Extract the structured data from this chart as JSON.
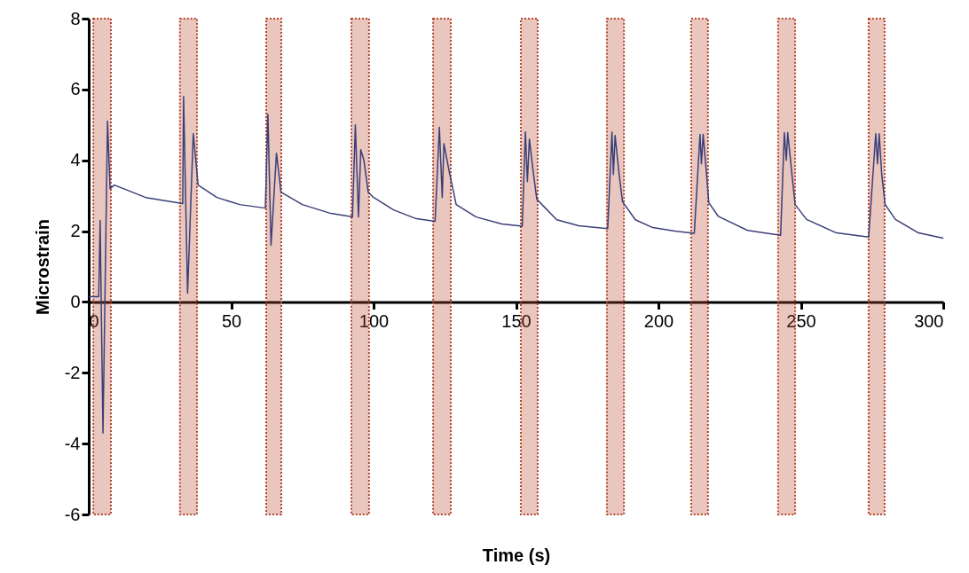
{
  "chart_data": {
    "type": "line",
    "xlabel": "Time (s)",
    "ylabel": "Microstrain",
    "xlim": [
      0,
      300
    ],
    "xticks": [
      0,
      50,
      100,
      150,
      200,
      250,
      300
    ],
    "ylim": [
      -6,
      8
    ],
    "yticks": [
      -6,
      -4,
      -2,
      0,
      2,
      4,
      6,
      8
    ],
    "grid": false,
    "marker": "none",
    "line_style": "solid",
    "series": [
      {
        "color": "#3b3f78",
        "x": [
          0,
          3.5,
          4,
          5,
          6.6,
          7.5,
          9,
          20,
          33,
          33.3,
          34.7,
          36.7,
          38.4,
          45,
          53,
          62,
          62.9,
          64,
          65.9,
          67.5,
          75,
          85,
          92.6,
          93.6,
          94.7,
          95.5,
          96.6,
          98.1,
          99.7,
          107,
          115,
          121.6,
          123.1,
          124.1,
          124.7,
          126.5,
          129,
          136,
          145,
          152.2,
          153.3,
          154,
          154.7,
          156,
          157.3,
          164.3,
          172,
          182.2,
          183.7,
          184.2,
          184.8,
          186.2,
          187.4,
          191.9,
          198,
          205.7,
          212.6,
          214.6,
          215.1,
          215.7,
          216.9,
          217.7,
          221,
          231.3,
          242.9,
          244.2,
          244.9,
          245.4,
          246.9,
          248,
          252,
          262.5,
          273.8,
          276.3,
          276.9,
          277.5,
          278.4,
          279.6,
          283.2,
          291.3,
          300
        ],
        "values": [
          0.15,
          0.15,
          2.3,
          -3.7,
          5.1,
          3.2,
          3.3,
          2.95,
          2.78,
          5.8,
          0.25,
          4.75,
          3.3,
          2.95,
          2.75,
          2.65,
          5.3,
          1.6,
          4.2,
          3.1,
          2.75,
          2.5,
          2.4,
          5.0,
          2.4,
          4.3,
          4.0,
          3.1,
          2.97,
          2.6,
          2.35,
          2.28,
          4.93,
          2.95,
          4.47,
          3.7,
          2.75,
          2.4,
          2.2,
          2.14,
          4.8,
          3.4,
          4.6,
          3.7,
          2.9,
          2.32,
          2.15,
          2.07,
          4.8,
          3.6,
          4.7,
          3.6,
          2.83,
          2.32,
          2.1,
          2.0,
          1.94,
          4.73,
          3.9,
          4.73,
          3.6,
          2.8,
          2.42,
          2.02,
          1.88,
          4.78,
          4.0,
          4.78,
          3.58,
          2.75,
          2.33,
          1.95,
          1.83,
          4.75,
          3.9,
          4.75,
          3.6,
          2.75,
          2.33,
          1.95,
          1.8
        ]
      }
    ],
    "bands": [
      {
        "axis": "x",
        "from": 1.6,
        "to": 7.8,
        "color": "#b5452c"
      },
      {
        "axis": "x",
        "from": 32,
        "to": 38,
        "color": "#b5452c"
      },
      {
        "axis": "x",
        "from": 62.3,
        "to": 67.6,
        "color": "#b5452c"
      },
      {
        "axis": "x",
        "from": 92.2,
        "to": 98.4,
        "color": "#b5452c"
      },
      {
        "axis": "x",
        "from": 120.9,
        "to": 127.1,
        "color": "#b5452c"
      },
      {
        "axis": "x",
        "from": 151.7,
        "to": 157.6,
        "color": "#b5452c"
      },
      {
        "axis": "x",
        "from": 181.9,
        "to": 187.9,
        "color": "#b5452c"
      },
      {
        "axis": "x",
        "from": 211.5,
        "to": 217.4,
        "color": "#b5452c"
      },
      {
        "axis": "x",
        "from": 242,
        "to": 248,
        "color": "#b5452c"
      },
      {
        "axis": "x",
        "from": 273.8,
        "to": 279.4,
        "color": "#b5452c"
      }
    ]
  }
}
